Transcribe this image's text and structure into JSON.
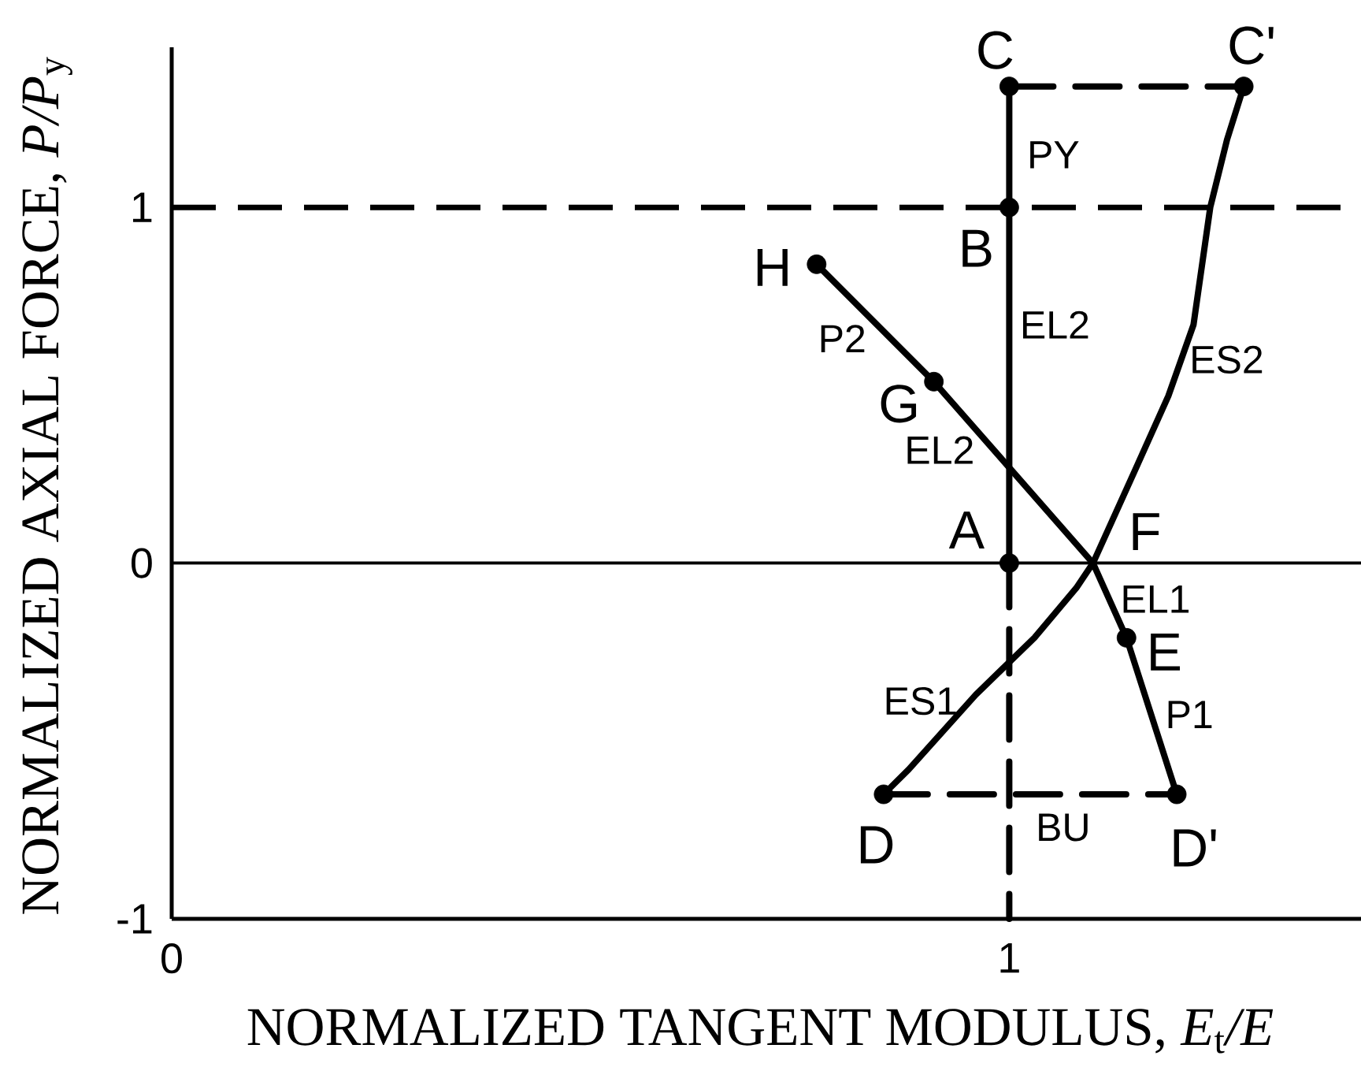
{
  "chart_data": {
    "type": "line",
    "xlabel": "NORMALIZED TANGENT MODULUS, *E*$_{t}$*/E*",
    "ylabel": "NORMALIZED AXIAL FORCE, *P/P*$_{y}$",
    "xlim": [
      0,
      1.42
    ],
    "ylim": [
      -1,
      1.45
    ],
    "xticks": [
      0,
      1
    ],
    "yticks": [
      -1,
      0,
      1
    ],
    "ref_lines": [
      {
        "axis": "y",
        "value": 1,
        "line_style": "dashed"
      },
      {
        "axis": "y",
        "value": 0,
        "line_style": "solid"
      }
    ],
    "series": [
      {
        "color": "#000000",
        "line_style": "solid",
        "x": [
          1,
          1,
          1
        ],
        "values": [
          0,
          1,
          1.34
        ]
      },
      {
        "color": "#000000",
        "line_style": "dashed",
        "x": [
          1,
          1.28
        ],
        "values": [
          1.34,
          1.34
        ]
      },
      {
        "color": "#000000",
        "line_style": "solid",
        "x": [
          0.77,
          0.91,
          1.1,
          1.14,
          1.2
        ],
        "values": [
          0.84,
          0.51,
          0,
          -0.21,
          -0.65
        ]
      },
      {
        "color": "#000000",
        "line_style": "solid",
        "x": [
          0.85,
          0.88,
          0.96,
          1.03,
          1.08,
          1.1,
          1.15,
          1.19,
          1.22,
          1.24,
          1.26,
          1.28
        ],
        "values": [
          -0.65,
          -0.58,
          -0.37,
          -0.21,
          -0.07,
          0,
          0.26,
          0.47,
          0.67,
          1.0,
          1.19,
          1.34
        ]
      },
      {
        "color": "#000000",
        "line_style": "dashed",
        "x": [
          0.85,
          1.2
        ],
        "values": [
          -0.65,
          -0.65
        ]
      },
      {
        "color": "#000000",
        "line_style": "dashed",
        "x": [
          1,
          1
        ],
        "values": [
          0,
          -1
        ]
      },
      {
        "type": "scatter",
        "color": "#000000",
        "marker": "circle",
        "x": [
          1,
          1,
          1,
          1.28,
          0.85,
          1.2,
          1.14,
          0.91,
          0.77
        ],
        "values": [
          0,
          1,
          1.34,
          1.34,
          -0.65,
          -0.65,
          -0.21,
          0.51,
          0.84
        ]
      }
    ],
    "annotations": [
      {
        "text": "A",
        "x": 1,
        "y": 0
      },
      {
        "text": "B",
        "x": 1,
        "y": 1
      },
      {
        "text": "C",
        "x": 1,
        "y": 1.34
      },
      {
        "text": "C'",
        "x": 1.28,
        "y": 1.34
      },
      {
        "text": "D",
        "x": 0.85,
        "y": -0.65
      },
      {
        "text": "D'",
        "x": 1.2,
        "y": -0.65
      },
      {
        "text": "E",
        "x": 1.14,
        "y": -0.21
      },
      {
        "text": "F",
        "x": 1.1,
        "y": 0
      },
      {
        "text": "G",
        "x": 0.91,
        "y": 0.51
      },
      {
        "text": "H",
        "x": 0.77,
        "y": 0.84
      },
      {
        "text": "PY",
        "x": 1,
        "y": 1.17
      },
      {
        "text": "EL2",
        "x": 1,
        "y": 0.67
      },
      {
        "text": "EL2",
        "x": 0.96,
        "y": 0.38
      },
      {
        "text": "ES2",
        "x": 1.19,
        "y": 0.47
      },
      {
        "text": "P2",
        "x": 0.84,
        "y": 0.68
      },
      {
        "text": "EL1",
        "x": 1.12,
        "y": -0.11
      },
      {
        "text": "ES1",
        "x": 0.96,
        "y": -0.37
      },
      {
        "text": "P1",
        "x": 1.17,
        "y": -0.43
      },
      {
        "text": "BU",
        "x": 1.07,
        "y": -0.65
      }
    ]
  }
}
